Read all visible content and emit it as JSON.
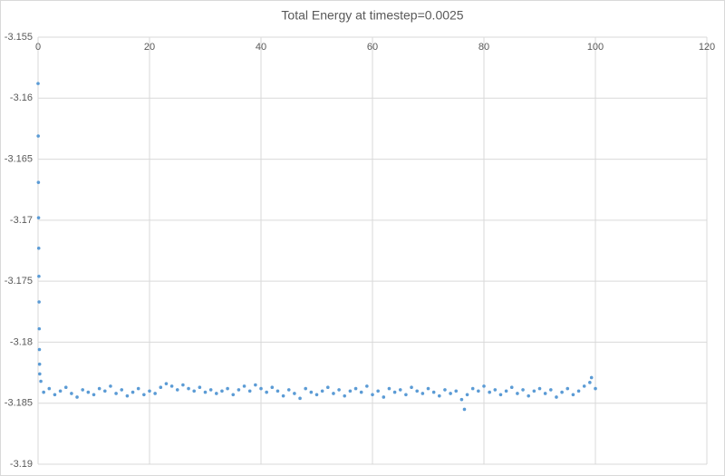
{
  "chart_data": {
    "type": "scatter",
    "title": "Total Energy at timestep=0.0025",
    "color": "#5b9bd5",
    "grid": true,
    "xlim": [
      0,
      120
    ],
    "xticks": [
      0,
      20,
      40,
      60,
      80,
      100,
      120
    ],
    "ylim": [
      -3.19,
      -3.155
    ],
    "yticks": [
      -3.155,
      -3.16,
      -3.165,
      -3.17,
      -3.175,
      -3.18,
      -3.185,
      -3.19
    ],
    "x": [
      0,
      0.03,
      0.06,
      0.09,
      0.12,
      0.15,
      0.18,
      0.21,
      0.24,
      0.27,
      0.3,
      0.5,
      1,
      2,
      3,
      4,
      5,
      6,
      7,
      8,
      9,
      10,
      11,
      12,
      13,
      14,
      15,
      16,
      17,
      18,
      19,
      20,
      21,
      22,
      23,
      24,
      25,
      26,
      27,
      28,
      29,
      30,
      31,
      32,
      33,
      34,
      35,
      36,
      37,
      38,
      39,
      40,
      41,
      42,
      43,
      44,
      45,
      46,
      47,
      48,
      49,
      50,
      51,
      52,
      53,
      54,
      55,
      56,
      57,
      58,
      59,
      60,
      61,
      62,
      63,
      64,
      65,
      66,
      67,
      68,
      69,
      70,
      71,
      72,
      73,
      74,
      75,
      76,
      77,
      78,
      79,
      80,
      81,
      82,
      83,
      84,
      85,
      86,
      87,
      88,
      89,
      90,
      91,
      92,
      93,
      94,
      95,
      96,
      97,
      98,
      99,
      100,
      76.5,
      99.3
    ],
    "values": [
      -3.1588,
      -3.1631,
      -3.1669,
      -3.1698,
      -3.1723,
      -3.1746,
      -3.1767,
      -3.1789,
      -3.1806,
      -3.1818,
      -3.1826,
      -3.1832,
      -3.1841,
      -3.1838,
      -3.1843,
      -3.184,
      -3.1837,
      -3.1842,
      -3.1845,
      -3.1839,
      -3.1841,
      -3.1843,
      -3.1838,
      -3.184,
      -3.1836,
      -3.1842,
      -3.1839,
      -3.1844,
      -3.1841,
      -3.1838,
      -3.1843,
      -3.184,
      -3.1842,
      -3.1837,
      -3.1834,
      -3.1836,
      -3.1839,
      -3.1835,
      -3.1838,
      -3.184,
      -3.1837,
      -3.1841,
      -3.1839,
      -3.1842,
      -3.184,
      -3.1838,
      -3.1843,
      -3.1839,
      -3.1836,
      -3.184,
      -3.1835,
      -3.1838,
      -3.1841,
      -3.1837,
      -3.184,
      -3.1844,
      -3.1839,
      -3.1842,
      -3.1846,
      -3.1838,
      -3.1841,
      -3.1843,
      -3.184,
      -3.1837,
      -3.1842,
      -3.1839,
      -3.1844,
      -3.184,
      -3.1838,
      -3.1841,
      -3.1836,
      -3.1843,
      -3.184,
      -3.1845,
      -3.1838,
      -3.1841,
      -3.1839,
      -3.1843,
      -3.1837,
      -3.184,
      -3.1842,
      -3.1838,
      -3.1841,
      -3.1844,
      -3.1839,
      -3.1842,
      -3.184,
      -3.1847,
      -3.1843,
      -3.1838,
      -3.184,
      -3.1836,
      -3.1841,
      -3.1839,
      -3.1843,
      -3.184,
      -3.1837,
      -3.1842,
      -3.1839,
      -3.1844,
      -3.184,
      -3.1838,
      -3.1842,
      -3.1839,
      -3.1845,
      -3.1841,
      -3.1838,
      -3.1843,
      -3.184,
      -3.1836,
      -3.1833,
      -3.1838,
      -3.1855,
      -3.1829
    ]
  }
}
